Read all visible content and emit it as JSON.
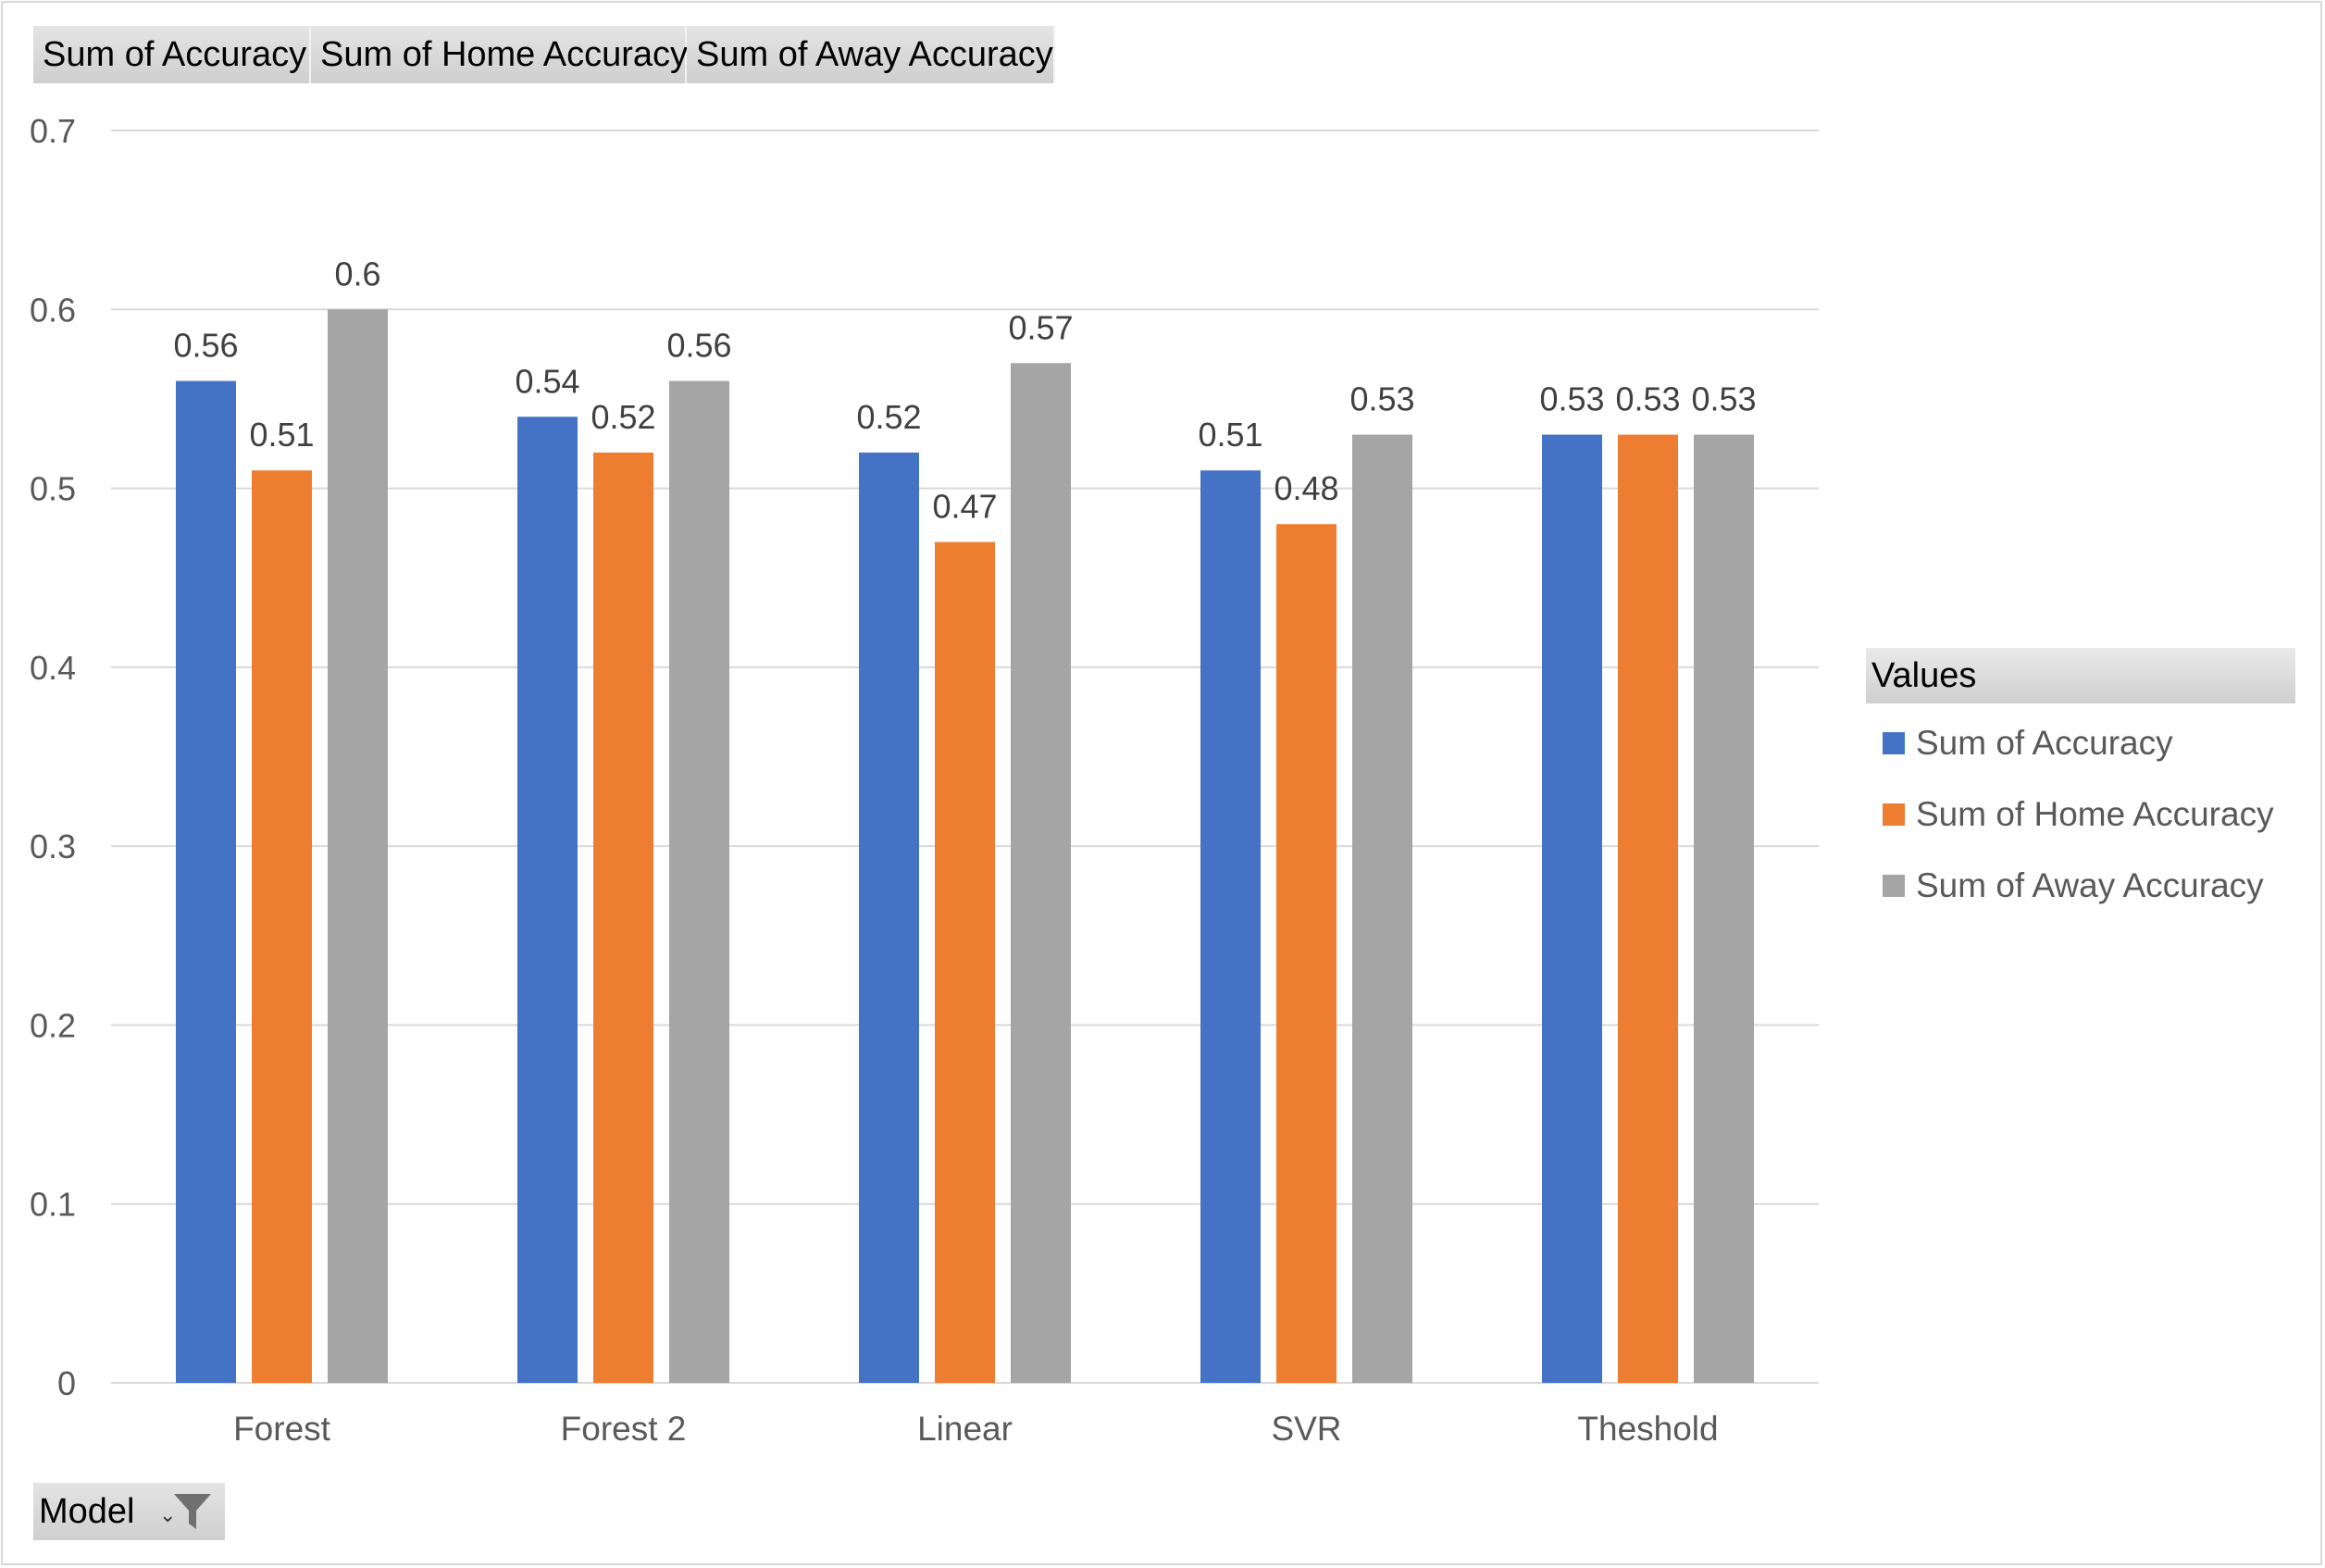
{
  "field_buttons": [
    "Sum of Accuracy",
    "Sum of Home Accuracy",
    "Sum of Away Accuracy"
  ],
  "legend": {
    "title": "Values",
    "items": [
      "Sum of Accuracy",
      "Sum of Home Accuracy",
      "Sum of Away Accuracy"
    ]
  },
  "axis_field_button": {
    "label": "Model",
    "icon": "filter-icon"
  },
  "colors": {
    "series1": "#4472C4",
    "series2": "#ED7D31",
    "series3": "#A5A5A5",
    "grid": "#d9d9d9",
    "label": "#595959"
  },
  "chart_data": {
    "type": "bar",
    "categories": [
      "Forest",
      "Forest 2",
      "Linear",
      "SVR",
      "Theshold"
    ],
    "series": [
      {
        "name": "Sum of Accuracy",
        "values": [
          0.56,
          0.54,
          0.52,
          0.51,
          0.53
        ]
      },
      {
        "name": "Sum of Home Accuracy",
        "values": [
          0.51,
          0.52,
          0.47,
          0.48,
          0.53
        ]
      },
      {
        "name": "Sum of Away Accuracy",
        "values": [
          0.6,
          0.56,
          0.57,
          0.53,
          0.53
        ]
      }
    ],
    "ylim": [
      0,
      0.7
    ],
    "yticks": [
      0,
      0.1,
      0.2,
      0.3,
      0.4,
      0.5,
      0.6,
      0.7
    ],
    "data_labels": true,
    "grid": true,
    "legend_position": "right"
  }
}
